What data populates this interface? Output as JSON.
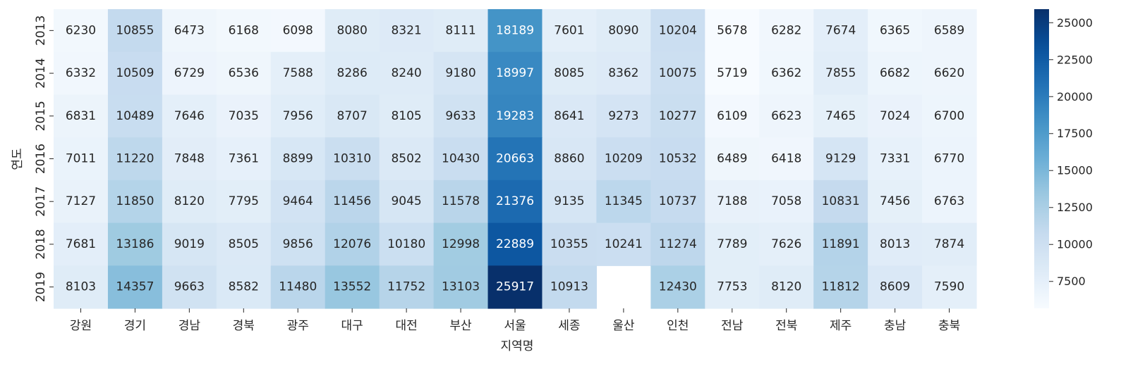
{
  "chart_data": {
    "type": "heatmap",
    "title": "",
    "xlabel": "지역명",
    "ylabel": "연도",
    "x_categories": [
      "강원",
      "경기",
      "경남",
      "경북",
      "광주",
      "대구",
      "대전",
      "부산",
      "서울",
      "세종",
      "울산",
      "인천",
      "전남",
      "전북",
      "제주",
      "충남",
      "충북"
    ],
    "y_categories": [
      "2013",
      "2014",
      "2015",
      "2016",
      "2017",
      "2018",
      "2019"
    ],
    "values": [
      [
        6230,
        10855,
        6473,
        6168,
        6098,
        8080,
        8321,
        8111,
        18189,
        7601,
        8090,
        10204,
        5678,
        6282,
        7674,
        6365,
        6589
      ],
      [
        6332,
        10509,
        6729,
        6536,
        7588,
        8286,
        8240,
        9180,
        18997,
        8085,
        8362,
        10075,
        5719,
        6362,
        7855,
        6682,
        6620
      ],
      [
        6831,
        10489,
        7646,
        7035,
        7956,
        8707,
        8105,
        9633,
        19283,
        8641,
        9273,
        10277,
        6109,
        6623,
        7465,
        7024,
        6700
      ],
      [
        7011,
        11220,
        7848,
        7361,
        8899,
        10310,
        8502,
        10430,
        20663,
        8860,
        10209,
        10532,
        6489,
        6418,
        9129,
        7331,
        6770
      ],
      [
        7127,
        11850,
        8120,
        7795,
        9464,
        11456,
        9045,
        11578,
        21376,
        9135,
        11345,
        10737,
        7188,
        7058,
        10831,
        7456,
        6763
      ],
      [
        7681,
        13186,
        9019,
        8505,
        9856,
        12076,
        10180,
        12998,
        22889,
        10355,
        10241,
        11274,
        7789,
        7626,
        11891,
        8013,
        7874
      ],
      [
        8103,
        14357,
        9663,
        8582,
        11480,
        13552,
        11752,
        13103,
        25917,
        10913,
        null,
        12430,
        7753,
        8120,
        11812,
        8609,
        7590
      ]
    ],
    "colormap": "Blues",
    "vmin": 5678,
    "vmax": 25917,
    "colorbar_ticks": [
      7500,
      10000,
      12500,
      15000,
      17500,
      20000,
      22500,
      25000
    ],
    "colorbar_tick_labels": [
      "7500",
      "10000",
      "12500",
      "15000",
      "17500",
      "20000",
      "22500",
      "25000"
    ],
    "annotations": true,
    "grid": false
  }
}
